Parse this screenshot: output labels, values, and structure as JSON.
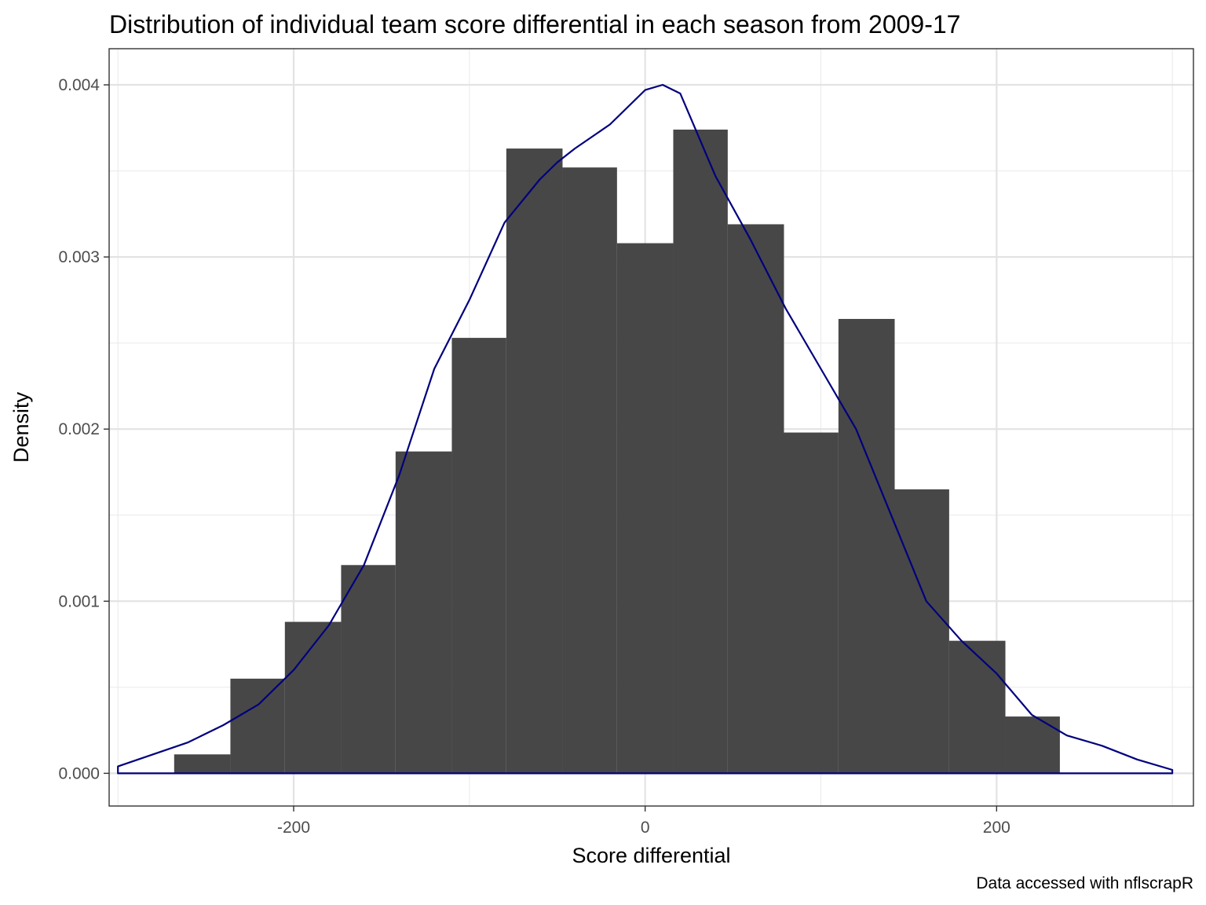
{
  "chart_data": {
    "type": "histogram",
    "title": "Distribution of individual team score differential in each season from 2009-17",
    "xlabel": "Score differential",
    "ylabel": "Density",
    "caption": "Data accessed with nflscrapR",
    "xlim": [
      -305,
      312
    ],
    "ylim": [
      -0.00019,
      0.00421
    ],
    "x_ticks": [
      -200,
      0,
      200
    ],
    "x_tick_labels": [
      "-200",
      "0",
      "200"
    ],
    "y_ticks": [
      0,
      0.001,
      0.002,
      0.003,
      0.004
    ],
    "y_tick_labels": [
      "0.000",
      "0.001",
      "0.002",
      "0.003",
      "0.004"
    ],
    "grid": true,
    "bar_color": "#474747",
    "density_color": "#00007f",
    "bins": [
      {
        "x0": -268,
        "x1": -236,
        "density": 0.00011
      },
      {
        "x0": -236,
        "x1": -205,
        "density": 0.00055
      },
      {
        "x0": -205,
        "x1": -173,
        "density": 0.00088
      },
      {
        "x0": -173,
        "x1": -142,
        "density": 0.00121
      },
      {
        "x0": -142,
        "x1": -110,
        "density": 0.00187
      },
      {
        "x0": -110,
        "x1": -79,
        "density": 0.00253
      },
      {
        "x0": -79,
        "x1": -47,
        "density": 0.00363
      },
      {
        "x0": -47,
        "x1": -16,
        "density": 0.00352
      },
      {
        "x0": -16,
        "x1": 16,
        "density": 0.00308
      },
      {
        "x0": 16,
        "x1": 47,
        "density": 0.00374
      },
      {
        "x0": 47,
        "x1": 79,
        "density": 0.00319
      },
      {
        "x0": 79,
        "x1": 110,
        "density": 0.00198
      },
      {
        "x0": 110,
        "x1": 142,
        "density": 0.00264
      },
      {
        "x0": 142,
        "x1": 173,
        "density": 0.00165
      },
      {
        "x0": 173,
        "x1": 205,
        "density": 0.00077
      },
      {
        "x0": 205,
        "x1": 236,
        "density": 0.00033
      }
    ],
    "density_curve": {
      "x": [
        -300,
        -260,
        -240,
        -220,
        -200,
        -180,
        -160,
        -140,
        -120,
        -100,
        -80,
        -60,
        -50,
        -40,
        -20,
        0,
        10,
        20,
        40,
        60,
        80,
        100,
        120,
        140,
        160,
        180,
        200,
        220,
        240,
        260,
        280,
        300
      ],
      "y": [
        4e-05,
        0.00018,
        0.00028,
        0.0004,
        0.0006,
        0.00086,
        0.00121,
        0.00173,
        0.00235,
        0.00275,
        0.0032,
        0.00345,
        0.00355,
        0.00363,
        0.00377,
        0.00397,
        0.004,
        0.00395,
        0.00347,
        0.0031,
        0.0027,
        0.00235,
        0.002,
        0.0015,
        0.001,
        0.00077,
        0.00058,
        0.00034,
        0.00022,
        0.00016,
        8e-05,
        2e-05
      ]
    }
  }
}
